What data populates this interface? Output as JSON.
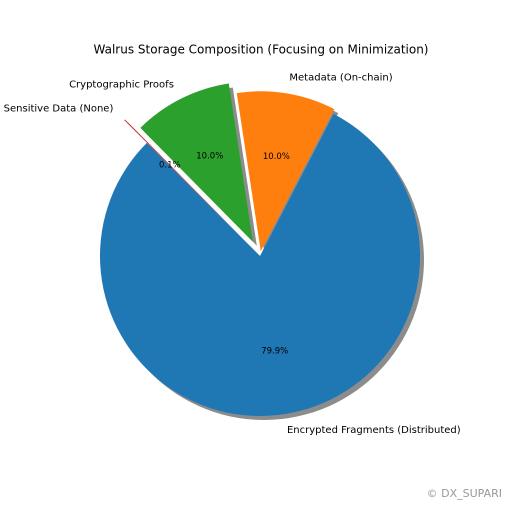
{
  "chart_data": {
    "type": "pie",
    "title": "Walrus Storage Composition (Focusing on Minimization)",
    "categories": [
      "Encrypted Fragments (Distributed)",
      "Metadata (On-chain)",
      "Cryptographic Proofs",
      "Sensitive Data (None)"
    ],
    "values": [
      79.9,
      10.0,
      10.0,
      0.1
    ],
    "value_labels": [
      "79.9%",
      "10.0%",
      "10.0%",
      "0.1%"
    ],
    "colors": [
      "#1f77b4",
      "#ff7f0e",
      "#2ca02c",
      "#d62728"
    ],
    "shadow": true
  },
  "watermark": "© DX_SUPARI"
}
